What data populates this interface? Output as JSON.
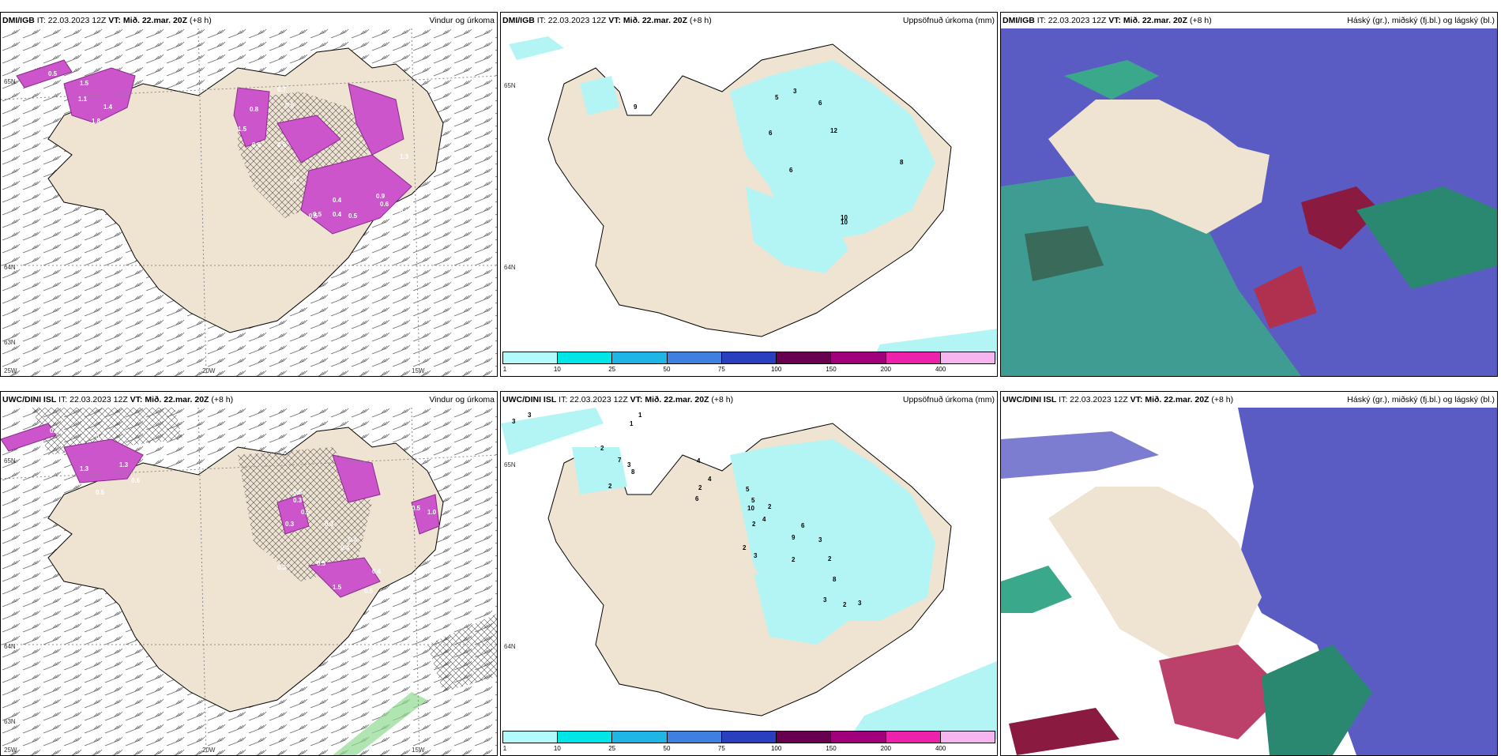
{
  "panels": {
    "p1": {
      "model": "DMI/IGB",
      "it": "IT: 22.03.2023 12Z",
      "vt": "VT: Mið. 22.mar. 20Z",
      "lead": "(+8 h)",
      "title": "Vindur og úrkoma",
      "lat_labels": [
        "65N",
        "64N",
        "63N"
      ],
      "lon_labels": [
        "25W",
        "20W",
        "15W"
      ],
      "values": [
        "0.5",
        "1.5",
        "1.1",
        "1.8",
        "1.4",
        "0.8",
        "0.5",
        "1.5",
        "0.7",
        "0.6",
        "0.6",
        "0.4",
        "0.5",
        "0.7",
        "1.3",
        "0.6",
        "0.9",
        "0.5",
        "0.4",
        "0.5",
        "0.5"
      ]
    },
    "p2": {
      "model": "DMI/IGB",
      "it": "IT: 22.03.2023 12Z",
      "vt": "VT: Mið. 22.mar. 20Z",
      "lead": "(+8 h)",
      "title": "Uppsöfnuð úrkoma (mm)",
      "lat_labels": [
        "65N",
        "64N"
      ],
      "values": [
        "9",
        "5",
        "3",
        "6",
        "6",
        "6",
        "12",
        "8",
        "10",
        "10"
      ]
    },
    "p3": {
      "model": "DMI/IGB",
      "it": "IT: 22.03.2023 12Z",
      "vt": "VT: Mið. 22.mar. 20Z",
      "lead": "(+8 h)",
      "title": "Háský (gr.), miðský (fj.bl.) og lágský (bl.)"
    },
    "p4": {
      "model": "UWC/DINI ISL",
      "it": "IT: 22.03.2023 12Z",
      "vt": "VT: Mið. 22.mar. 20Z",
      "lead": "(+8 h)",
      "title": "Vindur og úrkoma",
      "lat_labels": [
        "65N",
        "64N",
        "63N"
      ],
      "lon_labels": [
        "25W",
        "20W",
        "15W"
      ],
      "values": [
        "0.4",
        "0.6",
        "1.3",
        "1.3",
        "0.6",
        "0.5",
        "0.5",
        "0.3",
        "0.5",
        "0.3",
        "0.3",
        "0.4",
        "0.5",
        "0.4",
        "0.5",
        "1.5",
        "0.6",
        "0.5",
        "0.3",
        "1.0"
      ]
    },
    "p5": {
      "model": "UWC/DINI ISL",
      "it": "IT: 22.03.2023 12Z",
      "vt": "VT: Mið. 22.mar. 20Z",
      "lead": "(+8 h)",
      "title": "Uppsöfnuð úrkoma (mm)",
      "lat_labels": [
        "65N",
        "64N"
      ],
      "values": [
        "3",
        "3",
        "1",
        "1",
        "2",
        "7",
        "3",
        "8",
        "2",
        "4",
        "4",
        "2",
        "6",
        "5",
        "5",
        "10",
        "2",
        "2",
        "3",
        "2",
        "4",
        "6",
        "9",
        "2",
        "3",
        "2",
        "8",
        "3",
        "2",
        "3"
      ]
    },
    "p6": {
      "model": "UWC/DINI ISL",
      "it": "IT: 22.03.2023 12Z",
      "vt": "VT: Mið. 22.mar. 20Z",
      "lead": "(+8 h)",
      "title": "Háský (gr.), miðský (fj.bl.) og lágský (bl.)"
    }
  },
  "legend": {
    "ticks": [
      "1",
      "10",
      "25",
      "50",
      "75",
      "100",
      "150",
      "200",
      "400"
    ],
    "colors": [
      "#b3fbfb",
      "#00e5e5",
      "#1fb6e6",
      "#3f7fe0",
      "#2a3fbf",
      "#66004f",
      "#a0007a",
      "#ee22aa",
      "#f6b5ef"
    ]
  },
  "colors": {
    "land": "#efe3d2",
    "sea": "#ffffff",
    "precip": "#cc55cc",
    "accum": "#b3f5f5",
    "high": "#5b5bc4",
    "mid": "#3aa88a",
    "low": "#b02050"
  }
}
